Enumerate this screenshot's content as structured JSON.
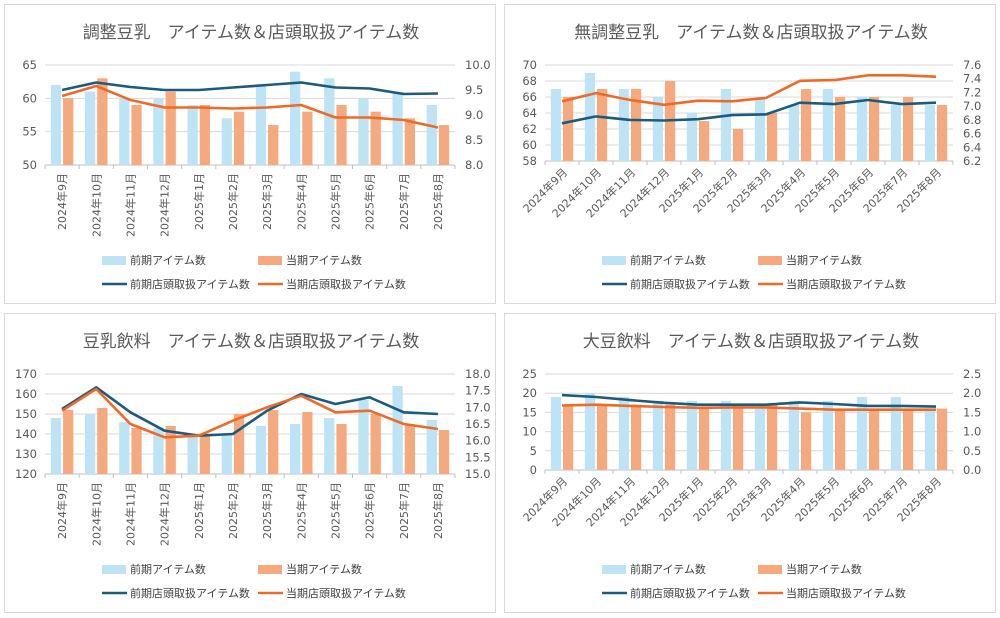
{
  "legend": {
    "prev_items": "前期アイテム数",
    "cur_items": "当期アイテム数",
    "prev_store": "前期店頭取扱アイテム数",
    "cur_store": "当期店頭取扱アイテム数"
  },
  "colors": {
    "prev_bar": "#bde3f5",
    "cur_bar": "#f4a97f",
    "prev_line": "#1d5b7e",
    "cur_line": "#ee6a26",
    "grid": "#d9d9d9"
  },
  "chart_data": [
    {
      "type": "bar",
      "title": "調整豆乳　アイテム数＆店頭取扱アイテム数",
      "categories": [
        "2024年9月",
        "2024年10月",
        "2024年11月",
        "2024年12月",
        "2025年1月",
        "2025年2月",
        "2025年3月",
        "2025年4月",
        "2025年5月",
        "2025年6月",
        "2025年7月",
        "2025年8月"
      ],
      "x_label_style": "vertical",
      "ylim": [
        50,
        65
      ],
      "yticks": [
        "50",
        "55",
        "60",
        "65"
      ],
      "y2lim": [
        8.0,
        10.0
      ],
      "y2ticks": [
        "8.0",
        "8.5",
        "9.0",
        "9.5",
        "10.0"
      ],
      "series": [
        {
          "name": "前期アイテム数",
          "type": "bar",
          "axis": "left",
          "values": [
            62,
            61,
            60,
            60,
            59,
            57,
            62,
            64,
            63,
            60,
            61,
            59
          ]
        },
        {
          "name": "当期アイテム数",
          "type": "bar",
          "axis": "left",
          "values": [
            60,
            63,
            59,
            61,
            59,
            58,
            56,
            58,
            59,
            58,
            57,
            56
          ]
        },
        {
          "name": "前期店頭取扱アイテム数",
          "type": "line",
          "axis": "right",
          "values": [
            9.5,
            9.65,
            9.56,
            9.5,
            9.5,
            9.55,
            9.6,
            9.65,
            9.55,
            9.53,
            9.42,
            9.43
          ]
        },
        {
          "name": "当期店頭取扱アイテム数",
          "type": "line",
          "axis": "right",
          "values": [
            9.38,
            9.58,
            9.3,
            9.15,
            9.15,
            9.13,
            9.15,
            9.2,
            8.95,
            8.95,
            8.9,
            8.75
          ]
        }
      ],
      "legend": "bottom",
      "grid": true
    },
    {
      "type": "bar",
      "title": "無調整豆乳　アイテム数＆店頭取扱アイテム数",
      "categories": [
        "2024年9月",
        "2024年10月",
        "2024年11月",
        "2024年12月",
        "2025年1月",
        "2025年2月",
        "2025年3月",
        "2025年4月",
        "2025年5月",
        "2025年6月",
        "2025年7月",
        "2025年8月"
      ],
      "x_label_style": "diagonal",
      "ylim": [
        58,
        70
      ],
      "yticks": [
        "58",
        "60",
        "62",
        "64",
        "66",
        "68",
        "70"
      ],
      "y2lim": [
        6.2,
        7.6
      ],
      "y2ticks": [
        "6.2",
        "6.4",
        "6.6",
        "6.8",
        "7.0",
        "7.2",
        "7.4",
        "7.6"
      ],
      "series": [
        {
          "name": "前期アイテム数",
          "type": "bar",
          "axis": "left",
          "values": [
            67,
            69,
            67,
            66,
            64,
            67,
            66,
            65,
            67,
            66,
            65,
            65
          ]
        },
        {
          "name": "当期アイテム数",
          "type": "bar",
          "axis": "left",
          "values": [
            66,
            67,
            67,
            68,
            63,
            62,
            64,
            67,
            66,
            66,
            66,
            65
          ]
        },
        {
          "name": "前期店頭取扱アイテム数",
          "type": "line",
          "axis": "right",
          "values": [
            6.75,
            6.85,
            6.8,
            6.79,
            6.81,
            6.87,
            6.88,
            7.05,
            7.03,
            7.09,
            7.03,
            7.05
          ]
        },
        {
          "name": "当期店頭取扱アイテム数",
          "type": "line",
          "axis": "right",
          "values": [
            7.07,
            7.19,
            7.09,
            7.02,
            7.08,
            7.07,
            7.12,
            7.37,
            7.38,
            7.45,
            7.45,
            7.43
          ]
        }
      ],
      "legend": "bottom",
      "grid": true
    },
    {
      "type": "bar",
      "title": "豆乳飲料　アイテム数＆店頭取扱アイテム数",
      "categories": [
        "2024年9月",
        "2024年10月",
        "2024年11月",
        "2024年12月",
        "2025年1月",
        "2025年2月",
        "2025年3月",
        "2025年4月",
        "2025年5月",
        "2025年6月",
        "2025年7月",
        "2025年8月"
      ],
      "x_label_style": "vertical",
      "ylim": [
        120,
        170
      ],
      "yticks": [
        "120",
        "130",
        "140",
        "150",
        "160",
        "170"
      ],
      "y2lim": [
        15.0,
        18.0
      ],
      "y2ticks": [
        "15.0",
        "15.5",
        "16.0",
        "16.5",
        "17.0",
        "17.5",
        "18.0"
      ],
      "series": [
        {
          "name": "前期アイテム数",
          "type": "bar",
          "axis": "left",
          "values": [
            148,
            150,
            146,
            143,
            139,
            140,
            144,
            145,
            148,
            157,
            164,
            147
          ]
        },
        {
          "name": "当期アイテム数",
          "type": "bar",
          "axis": "left",
          "values": [
            152,
            153,
            143,
            144,
            139,
            150,
            152,
            151,
            145,
            150,
            145,
            142
          ]
        },
        {
          "name": "前期店頭取扱アイテム数",
          "type": "line",
          "axis": "right",
          "values": [
            16.95,
            17.6,
            16.85,
            16.3,
            16.15,
            16.2,
            16.9,
            17.4,
            17.1,
            17.3,
            16.85,
            16.8
          ]
        },
        {
          "name": "当期店頭取扱アイテム数",
          "type": "line",
          "axis": "right",
          "values": [
            16.9,
            17.55,
            16.5,
            16.1,
            16.15,
            16.6,
            17.0,
            17.35,
            16.85,
            16.9,
            16.5,
            16.35
          ]
        }
      ],
      "legend": "bottom",
      "grid": true
    },
    {
      "type": "bar",
      "title": "大豆飲料　アイテム数＆店頭取扱アイテム数",
      "categories": [
        "2024年9月",
        "2024年10月",
        "2024年11月",
        "2024年12月",
        "2025年1月",
        "2025年2月",
        "2025年3月",
        "2025年4月",
        "2025年5月",
        "2025年6月",
        "2025年7月",
        "2025年8月"
      ],
      "x_label_style": "diagonal",
      "ylim": [
        0,
        25
      ],
      "yticks": [
        "0",
        "5",
        "10",
        "15",
        "20",
        "25"
      ],
      "y2lim": [
        0.0,
        2.5
      ],
      "y2ticks": [
        "0.0",
        "0.5",
        "1.0",
        "1.5",
        "2.0",
        "2.5"
      ],
      "series": [
        {
          "name": "前期アイテム数",
          "type": "bar",
          "axis": "left",
          "values": [
            19,
            20,
            19,
            18,
            18,
            18,
            17,
            18,
            18,
            19,
            19,
            16
          ]
        },
        {
          "name": "当期アイテム数",
          "type": "bar",
          "axis": "left",
          "values": [
            17,
            17,
            17,
            17,
            16,
            17,
            17,
            15,
            16,
            16,
            16,
            16
          ]
        },
        {
          "name": "前期店頭取扱アイテム数",
          "type": "line",
          "axis": "right",
          "values": [
            1.95,
            1.9,
            1.82,
            1.75,
            1.7,
            1.7,
            1.7,
            1.76,
            1.72,
            1.67,
            1.67,
            1.65
          ]
        },
        {
          "name": "当期店頭取扱アイテム数",
          "type": "line",
          "axis": "right",
          "values": [
            1.68,
            1.7,
            1.67,
            1.64,
            1.62,
            1.63,
            1.63,
            1.6,
            1.57,
            1.57,
            1.57,
            1.57
          ]
        }
      ],
      "legend": "bottom",
      "grid": true
    }
  ]
}
